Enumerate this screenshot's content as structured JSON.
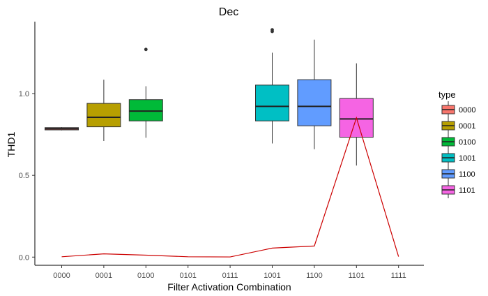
{
  "chart_data": {
    "type": "box",
    "title": "Dec",
    "xlabel": "Filter Activation Combination",
    "ylabel": "THD1",
    "categories": [
      "0000",
      "0001",
      "0100",
      "0101",
      "0111",
      "1001",
      "1100",
      "1101",
      "1111"
    ],
    "ylim": [
      -0.05,
      1.44
    ],
    "yticks": [
      0.0,
      0.5,
      1.0
    ],
    "ytick_labels": [
      "0.0",
      "0.5",
      "1.0"
    ],
    "grid": false,
    "legend": {
      "title": "type",
      "position": "right",
      "entries": [
        "0000",
        "0001",
        "0100",
        "1001",
        "1100",
        "1101"
      ]
    },
    "boxes": [
      {
        "category": "0000",
        "min": 0.775,
        "q1": 0.778,
        "median": 0.785,
        "q3": 0.792,
        "max": 0.795,
        "outliers": [],
        "color": "#F8766D"
      },
      {
        "category": "0001",
        "min": 0.71,
        "q1": 0.797,
        "median": 0.855,
        "q3": 0.94,
        "max": 1.085,
        "outliers": [],
        "color": "#B79F00"
      },
      {
        "category": "0100",
        "min": 0.73,
        "q1": 0.833,
        "median": 0.893,
        "q3": 0.963,
        "max": 1.045,
        "outliers": [
          1.27
        ],
        "color": "#00BA38"
      },
      {
        "category": "1001",
        "min": 0.695,
        "q1": 0.833,
        "median": 0.922,
        "q3": 1.052,
        "max": 1.25,
        "outliers": [
          1.38,
          1.39
        ],
        "color": "#00BFC4"
      },
      {
        "category": "1100",
        "min": 0.66,
        "q1": 0.803,
        "median": 0.922,
        "q3": 1.085,
        "max": 1.33,
        "outliers": [],
        "color": "#619CFF"
      },
      {
        "category": "1101",
        "min": 0.56,
        "q1": 0.733,
        "median": 0.845,
        "q3": 0.97,
        "max": 1.185,
        "outliers": [],
        "color": "#F564E3"
      }
    ],
    "line_series": {
      "color": "#CC0000",
      "values": [
        0.002,
        0.02,
        0.012,
        0.002,
        0.001,
        0.055,
        0.068,
        0.852,
        0.003
      ]
    }
  }
}
